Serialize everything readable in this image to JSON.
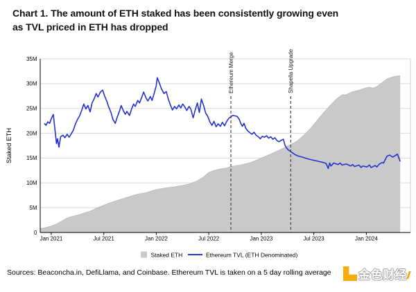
{
  "title_lines": [
    "Chart 1. The amount of ETH staked has been consistently growing even",
    "as TVL priced in ETH has dropped"
  ],
  "footer": {
    "sources_text": "Sources: Beaconcha.in, DefiLlama, and Coinbase. Ethereum TVL is taken on a 5 day rolling average"
  },
  "watermark": {
    "text": "金色财经",
    "color": "#f6a800"
  },
  "chart_data": {
    "type": "area+line",
    "title": "",
    "xlabel": "",
    "ylabel": "Staked ETH",
    "ylim": [
      0,
      35
    ],
    "x_domain": [
      2020.895,
      2024.42
    ],
    "grid": true,
    "grid_color": "#d9d9d9",
    "legend_position": "bottom-center",
    "y_ticks": [
      {
        "label": "0",
        "value": 0
      },
      {
        "label": "5M",
        "value": 5
      },
      {
        "label": "10M",
        "value": 10
      },
      {
        "label": "15M",
        "value": 15
      },
      {
        "label": "20M",
        "value": 20
      },
      {
        "label": "25M",
        "value": 25
      },
      {
        "label": "30M",
        "value": 30
      },
      {
        "label": "35M",
        "value": 35
      }
    ],
    "x_ticks": [
      {
        "label": "Jan 2021",
        "value": 2021.0
      },
      {
        "label": "Jul 2021",
        "value": 2021.5
      },
      {
        "label": "Jan 2022",
        "value": 2022.0
      },
      {
        "label": "Jul 2022",
        "value": 2022.5
      },
      {
        "label": "Jan 2023",
        "value": 2023.0
      },
      {
        "label": "Jul 2023",
        "value": 2023.5
      },
      {
        "label": "Jan 2024",
        "value": 2024.0
      }
    ],
    "events": [
      {
        "label": "Ethereum Merge",
        "x": 2022.71
      },
      {
        "label": "Shapella Upgrade",
        "x": 2023.28
      }
    ],
    "legend": [
      {
        "label": "Staked ETH",
        "type": "area",
        "color": "#c9c9c9"
      },
      {
        "label": "Ethereum TVL (ETH Denominated)",
        "type": "line",
        "color": "#2231cf"
      }
    ],
    "series": [
      {
        "name": "Staked ETH",
        "type": "area",
        "color": "#c9c9c9",
        "unit": "M ETH",
        "points": [
          [
            2020.895,
            0.8
          ],
          [
            2020.93,
            0.9
          ],
          [
            2021.0,
            1.3
          ],
          [
            2021.05,
            1.7
          ],
          [
            2021.1,
            2.3
          ],
          [
            2021.15,
            2.9
          ],
          [
            2021.19,
            3.2
          ],
          [
            2021.23,
            3.4
          ],
          [
            2021.27,
            3.6
          ],
          [
            2021.31,
            3.9
          ],
          [
            2021.37,
            4.3
          ],
          [
            2021.43,
            4.9
          ],
          [
            2021.5,
            5.5
          ],
          [
            2021.56,
            6.0
          ],
          [
            2021.62,
            6.4
          ],
          [
            2021.68,
            6.8
          ],
          [
            2021.74,
            7.2
          ],
          [
            2021.8,
            7.6
          ],
          [
            2021.84,
            7.8
          ],
          [
            2021.9,
            8.0
          ],
          [
            2021.96,
            8.4
          ],
          [
            2022.01,
            8.7
          ],
          [
            2022.09,
            9.0
          ],
          [
            2022.17,
            9.2
          ],
          [
            2022.25,
            9.5
          ],
          [
            2022.32,
            9.8
          ],
          [
            2022.39,
            10.4
          ],
          [
            2022.45,
            11.2
          ],
          [
            2022.5,
            12.1
          ],
          [
            2022.55,
            12.5
          ],
          [
            2022.61,
            12.8
          ],
          [
            2022.67,
            13.0
          ],
          [
            2022.714,
            13.3
          ],
          [
            2022.8,
            13.6
          ],
          [
            2022.9,
            14.1
          ],
          [
            2023.0,
            15.0
          ],
          [
            2023.1,
            15.9
          ],
          [
            2023.2,
            16.9
          ],
          [
            2023.287,
            17.8
          ],
          [
            2023.34,
            18.4
          ],
          [
            2023.4,
            19.5
          ],
          [
            2023.47,
            21.0
          ],
          [
            2023.54,
            22.8
          ],
          [
            2023.6,
            24.3
          ],
          [
            2023.66,
            25.7
          ],
          [
            2023.72,
            27.0
          ],
          [
            2023.76,
            27.6
          ],
          [
            2023.78,
            27.8
          ],
          [
            2023.8,
            27.7
          ],
          [
            2023.83,
            28.0
          ],
          [
            2023.86,
            28.3
          ],
          [
            2023.93,
            28.7
          ],
          [
            2023.99,
            29.1
          ],
          [
            2024.03,
            29.3
          ],
          [
            2024.06,
            29.1
          ],
          [
            2024.1,
            29.4
          ],
          [
            2024.15,
            30.2
          ],
          [
            2024.2,
            31.0
          ],
          [
            2024.26,
            31.4
          ],
          [
            2024.322,
            31.6
          ]
        ]
      },
      {
        "name": "Ethereum TVL (ETH Denominated)",
        "type": "line",
        "color": "#2231cf",
        "unit": "M ETH",
        "points": [
          [
            2020.934,
            22.0
          ],
          [
            2020.95,
            21.6
          ],
          [
            2020.967,
            22.3
          ],
          [
            2020.985,
            22.0
          ],
          [
            2021.0,
            22.9
          ],
          [
            2021.02,
            23.8
          ],
          [
            2021.033,
            21.2
          ],
          [
            2021.05,
            17.9
          ],
          [
            2021.06,
            18.9
          ],
          [
            2021.073,
            17.2
          ],
          [
            2021.09,
            19.3
          ],
          [
            2021.112,
            19.6
          ],
          [
            2021.13,
            19.1
          ],
          [
            2021.152,
            19.8
          ],
          [
            2021.17,
            19.2
          ],
          [
            2021.191,
            19.9
          ],
          [
            2021.21,
            20.6
          ],
          [
            2021.231,
            21.9
          ],
          [
            2021.25,
            22.8
          ],
          [
            2021.27,
            23.5
          ],
          [
            2021.29,
            24.6
          ],
          [
            2021.31,
            25.9
          ],
          [
            2021.33,
            24.9
          ],
          [
            2021.349,
            25.6
          ],
          [
            2021.37,
            24.3
          ],
          [
            2021.389,
            26.1
          ],
          [
            2021.41,
            27.0
          ],
          [
            2021.428,
            28.0
          ],
          [
            2021.445,
            27.3
          ],
          [
            2021.468,
            28.3
          ],
          [
            2021.49,
            28.7
          ],
          [
            2021.508,
            27.5
          ],
          [
            2021.53,
            26.4
          ],
          [
            2021.547,
            25.3
          ],
          [
            2021.57,
            24.1
          ],
          [
            2021.587,
            22.8
          ],
          [
            2021.61,
            22.0
          ],
          [
            2021.626,
            23.1
          ],
          [
            2021.65,
            24.5
          ],
          [
            2021.666,
            25.6
          ],
          [
            2021.685,
            24.6
          ],
          [
            2021.705,
            23.8
          ],
          [
            2021.72,
            24.4
          ],
          [
            2021.745,
            23.6
          ],
          [
            2021.765,
            24.9
          ],
          [
            2021.784,
            25.9
          ],
          [
            2021.8,
            25.4
          ],
          [
            2021.824,
            26.6
          ],
          [
            2021.84,
            26.1
          ],
          [
            2021.863,
            27.3
          ],
          [
            2021.88,
            28.3
          ],
          [
            2021.903,
            27.1
          ],
          [
            2021.92,
            26.5
          ],
          [
            2021.943,
            27.4
          ],
          [
            2021.96,
            26.6
          ],
          [
            2021.982,
            28.2
          ],
          [
            2022.0,
            29.6
          ],
          [
            2022.009,
            31.2
          ],
          [
            2022.03,
            30.1
          ],
          [
            2022.05,
            28.9
          ],
          [
            2022.074,
            28.0
          ],
          [
            2022.095,
            28.4
          ],
          [
            2022.114,
            26.9
          ],
          [
            2022.135,
            25.7
          ],
          [
            2022.154,
            24.7
          ],
          [
            2022.175,
            25.4
          ],
          [
            2022.193,
            24.9
          ],
          [
            2022.215,
            25.7
          ],
          [
            2022.233,
            25.1
          ],
          [
            2022.252,
            25.9
          ],
          [
            2022.272,
            25.3
          ],
          [
            2022.29,
            24.6
          ],
          [
            2022.312,
            25.4
          ],
          [
            2022.33,
            24.8
          ],
          [
            2022.351,
            23.1
          ],
          [
            2022.37,
            24.6
          ],
          [
            2022.391,
            26.1
          ],
          [
            2022.41,
            24.2
          ],
          [
            2022.43,
            26.9
          ],
          [
            2022.45,
            25.6
          ],
          [
            2022.47,
            24.1
          ],
          [
            2022.49,
            23.4
          ],
          [
            2022.51,
            22.3
          ],
          [
            2022.53,
            21.6
          ],
          [
            2022.549,
            22.4
          ],
          [
            2022.57,
            21.3
          ],
          [
            2022.589,
            21.9
          ],
          [
            2022.61,
            21.4
          ],
          [
            2022.63,
            22.2
          ],
          [
            2022.65,
            21.5
          ],
          [
            2022.668,
            22.3
          ],
          [
            2022.69,
            23.0
          ],
          [
            2022.714,
            23.4
          ],
          [
            2022.73,
            23.6
          ],
          [
            2022.75,
            23.5
          ],
          [
            2022.77,
            23.4
          ],
          [
            2022.79,
            22.8
          ],
          [
            2022.806,
            21.9
          ],
          [
            2022.82,
            21.4
          ],
          [
            2022.835,
            22.0
          ],
          [
            2022.852,
            21.0
          ],
          [
            2022.87,
            20.5
          ],
          [
            2022.892,
            20.1
          ],
          [
            2022.91,
            19.8
          ],
          [
            2022.931,
            20.2
          ],
          [
            2022.95,
            19.6
          ],
          [
            2022.971,
            19.3
          ],
          [
            2022.99,
            18.9
          ],
          [
            2023.01,
            19.4
          ],
          [
            2023.03,
            19.2
          ],
          [
            2023.05,
            19.5
          ],
          [
            2023.07,
            19.0
          ],
          [
            2023.09,
            19.3
          ],
          [
            2023.11,
            18.8
          ],
          [
            2023.129,
            19.1
          ],
          [
            2023.15,
            18.5
          ],
          [
            2023.169,
            18.3
          ],
          [
            2023.19,
            18.6
          ],
          [
            2023.21,
            18.8
          ],
          [
            2023.225,
            17.6
          ],
          [
            2023.241,
            17.0
          ],
          [
            2023.26,
            16.6
          ],
          [
            2023.287,
            16.2
          ],
          [
            2023.32,
            15.7
          ],
          [
            2023.353,
            15.4
          ],
          [
            2023.39,
            15.2
          ],
          [
            2023.432,
            14.9
          ],
          [
            2023.47,
            14.7
          ],
          [
            2023.51,
            14.5
          ],
          [
            2023.55,
            14.3
          ],
          [
            2023.59,
            14.1
          ],
          [
            2023.617,
            13.9
          ],
          [
            2023.637,
            12.9
          ],
          [
            2023.65,
            14.0
          ],
          [
            2023.663,
            13.4
          ],
          [
            2023.689,
            14.0
          ],
          [
            2023.73,
            13.7
          ],
          [
            2023.75,
            14.0
          ],
          [
            2023.768,
            13.6
          ],
          [
            2023.81,
            13.8
          ],
          [
            2023.85,
            13.4
          ],
          [
            2023.87,
            13.7
          ],
          [
            2023.887,
            13.3
          ],
          [
            2023.93,
            13.6
          ],
          [
            2023.95,
            13.1
          ],
          [
            2023.966,
            13.4
          ],
          [
            2024.006,
            13.2
          ],
          [
            2024.03,
            13.6
          ],
          [
            2024.045,
            13.1
          ],
          [
            2024.085,
            13.5
          ],
          [
            2024.1,
            13.2
          ],
          [
            2024.124,
            13.8
          ],
          [
            2024.15,
            14.1
          ],
          [
            2024.164,
            14.0
          ],
          [
            2024.197,
            15.4
          ],
          [
            2024.223,
            15.6
          ],
          [
            2024.25,
            15.2
          ],
          [
            2024.276,
            15.5
          ],
          [
            2024.296,
            15.8
          ],
          [
            2024.322,
            14.3
          ]
        ]
      }
    ]
  }
}
